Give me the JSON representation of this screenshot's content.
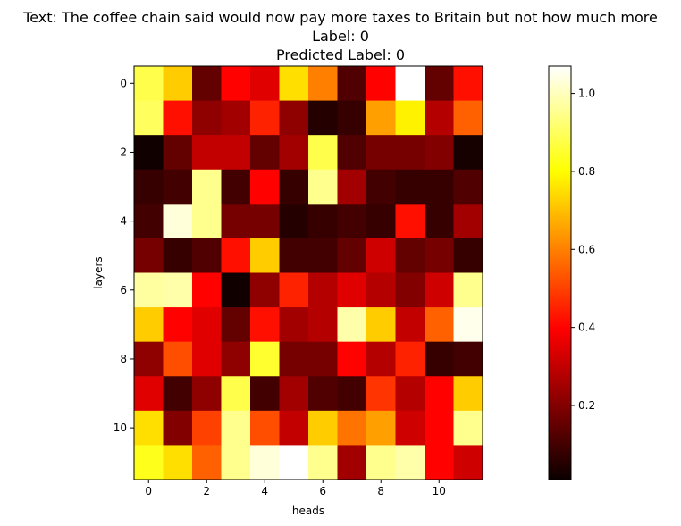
{
  "chart_data": {
    "type": "heatmap",
    "title_lines": [
      "Text: The coffee chain said would now pay more taxes to Britain but not how much more",
      "Label: 0",
      "Predicted Label: 0"
    ],
    "xlabel": "heads",
    "ylabel": "layers",
    "colormap": "hot",
    "vmin": 0.01,
    "vmax": 1.07,
    "colorbar_ticks": [
      0.2,
      0.4,
      0.6,
      0.8,
      1.0
    ],
    "x_ticks": [
      0,
      2,
      4,
      6,
      8,
      10
    ],
    "y_ticks": [
      0,
      2,
      4,
      6,
      8,
      10
    ],
    "rows": 12,
    "cols": 12,
    "values": [
      [
        0.88,
        0.72,
        0.15,
        0.4,
        0.35,
        0.75,
        0.6,
        0.12,
        0.4,
        1.07,
        0.15,
        0.42
      ],
      [
        0.9,
        0.42,
        0.22,
        0.25,
        0.45,
        0.22,
        0.05,
        0.08,
        0.65,
        0.78,
        0.28,
        0.55
      ],
      [
        0.02,
        0.15,
        0.3,
        0.3,
        0.15,
        0.25,
        0.88,
        0.12,
        0.18,
        0.18,
        0.2,
        0.03
      ],
      [
        0.08,
        0.1,
        0.95,
        0.1,
        0.4,
        0.08,
        0.95,
        0.25,
        0.1,
        0.08,
        0.08,
        0.12
      ],
      [
        0.1,
        1.03,
        0.95,
        0.18,
        0.18,
        0.05,
        0.08,
        0.1,
        0.08,
        0.42,
        0.08,
        0.25
      ],
      [
        0.18,
        0.08,
        0.12,
        0.42,
        0.72,
        0.1,
        0.1,
        0.15,
        0.32,
        0.15,
        0.18,
        0.08
      ],
      [
        0.97,
        0.98,
        0.4,
        0.02,
        0.22,
        0.45,
        0.28,
        0.35,
        0.28,
        0.2,
        0.32,
        0.95
      ],
      [
        0.72,
        0.4,
        0.35,
        0.15,
        0.42,
        0.25,
        0.28,
        0.98,
        0.72,
        0.3,
        0.55,
        1.05
      ],
      [
        0.22,
        0.52,
        0.35,
        0.22,
        0.85,
        0.18,
        0.18,
        0.4,
        0.28,
        0.45,
        0.08,
        0.1
      ],
      [
        0.35,
        0.1,
        0.22,
        0.88,
        0.1,
        0.25,
        0.12,
        0.1,
        0.48,
        0.28,
        0.4,
        0.72
      ],
      [
        0.75,
        0.2,
        0.5,
        0.95,
        0.52,
        0.3,
        0.72,
        0.58,
        0.65,
        0.32,
        0.4,
        0.95
      ],
      [
        0.83,
        0.75,
        0.55,
        0.95,
        1.03,
        1.07,
        0.95,
        0.25,
        0.95,
        0.98,
        0.4,
        0.32
      ]
    ]
  }
}
